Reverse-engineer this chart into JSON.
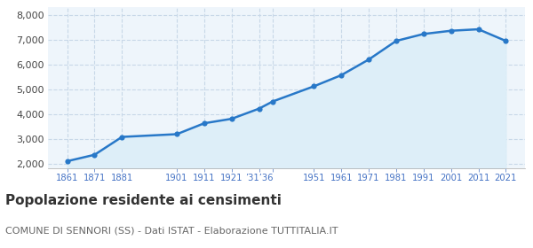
{
  "years": [
    1861,
    1871,
    1881,
    1901,
    1911,
    1921,
    1931,
    1936,
    1951,
    1961,
    1971,
    1981,
    1991,
    2001,
    2011,
    2021
  ],
  "population": [
    2100,
    2360,
    3080,
    3190,
    3630,
    3810,
    4220,
    4510,
    5120,
    5570,
    6200,
    6950,
    7230,
    7360,
    7420,
    6950
  ],
  "line_color": "#2878c8",
  "fill_color": "#ddeef8",
  "marker_color": "#2878c8",
  "background_color": "#ffffff",
  "grid_color": "#c8d8e8",
  "title": "Popolazione residente ai censimenti",
  "subtitle": "COMUNE DI SENNORI (SS) - Dati ISTAT - Elaborazione TUTTITALIA.IT",
  "title_fontsize": 11,
  "subtitle_fontsize": 8,
  "ylim": [
    1800,
    8300
  ],
  "yticks": [
    2000,
    3000,
    4000,
    5000,
    6000,
    7000,
    8000
  ],
  "tick_color": "#4472c4",
  "xlim_left": 1854,
  "xlim_right": 2028
}
